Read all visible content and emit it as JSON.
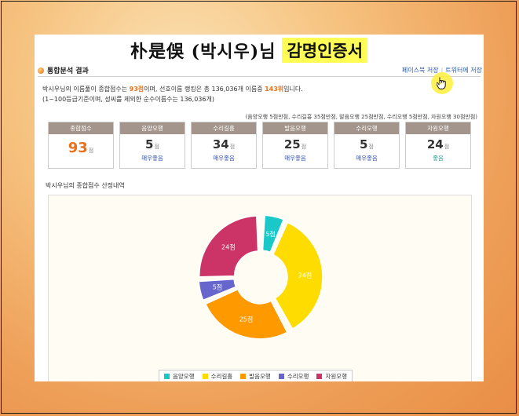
{
  "banner": {
    "name": "朴是俁 (박시우)님",
    "cert": "감명인증서"
  },
  "section": {
    "title": "통합분석 결과"
  },
  "share": {
    "facebook": "페이스북 저장",
    "twitter": "트위터에 저장"
  },
  "summary": {
    "line1_pre": "박시우님의 이름풀이 종합점수는 ",
    "score": "93점",
    "line1_mid": "이며, 선호이름 랭킹은 총 136,036개 이름중 ",
    "rank": "143위",
    "line1_post": "입니다.",
    "line2": "(1~100등급기준이며, 성씨를 제외한 순수이름수는 136,036개)"
  },
  "criteria": "(음양오행 5점만점, 수리길흉 35점만점, 발음오행 25점만점, 수리오행 5점만점, 자원오행 30점만점)",
  "scores": [
    {
      "label": "종합점수",
      "value": "93",
      "unit": "점",
      "grade": ""
    },
    {
      "label": "음양오행",
      "value": "5",
      "unit": "점",
      "grade": "매우좋음"
    },
    {
      "label": "수리길흉",
      "value": "34",
      "unit": "점",
      "grade": "매우좋음"
    },
    {
      "label": "발음오행",
      "value": "25",
      "unit": "점",
      "grade": "매우좋음"
    },
    {
      "label": "수리오행",
      "value": "5",
      "unit": "점",
      "grade": "매우좋음"
    },
    {
      "label": "자원오행",
      "value": "24",
      "unit": "점",
      "grade": "좋음"
    }
  ],
  "chart_title": "박시우님의 종합점수 산정내역",
  "chart_data": {
    "type": "pie",
    "style": "donut",
    "categories": [
      "음양오행",
      "수리길흉",
      "발음오행",
      "수리오행",
      "자원오행"
    ],
    "values": [
      5,
      34,
      25,
      5,
      24
    ],
    "data_labels": [
      "5점",
      "34점",
      "25점",
      "5점",
      "24점"
    ],
    "colors": [
      "#1bc8c8",
      "#ffdc00",
      "#ff9900",
      "#6666cc",
      "#cc3366"
    ],
    "legend_position": "bottom"
  }
}
